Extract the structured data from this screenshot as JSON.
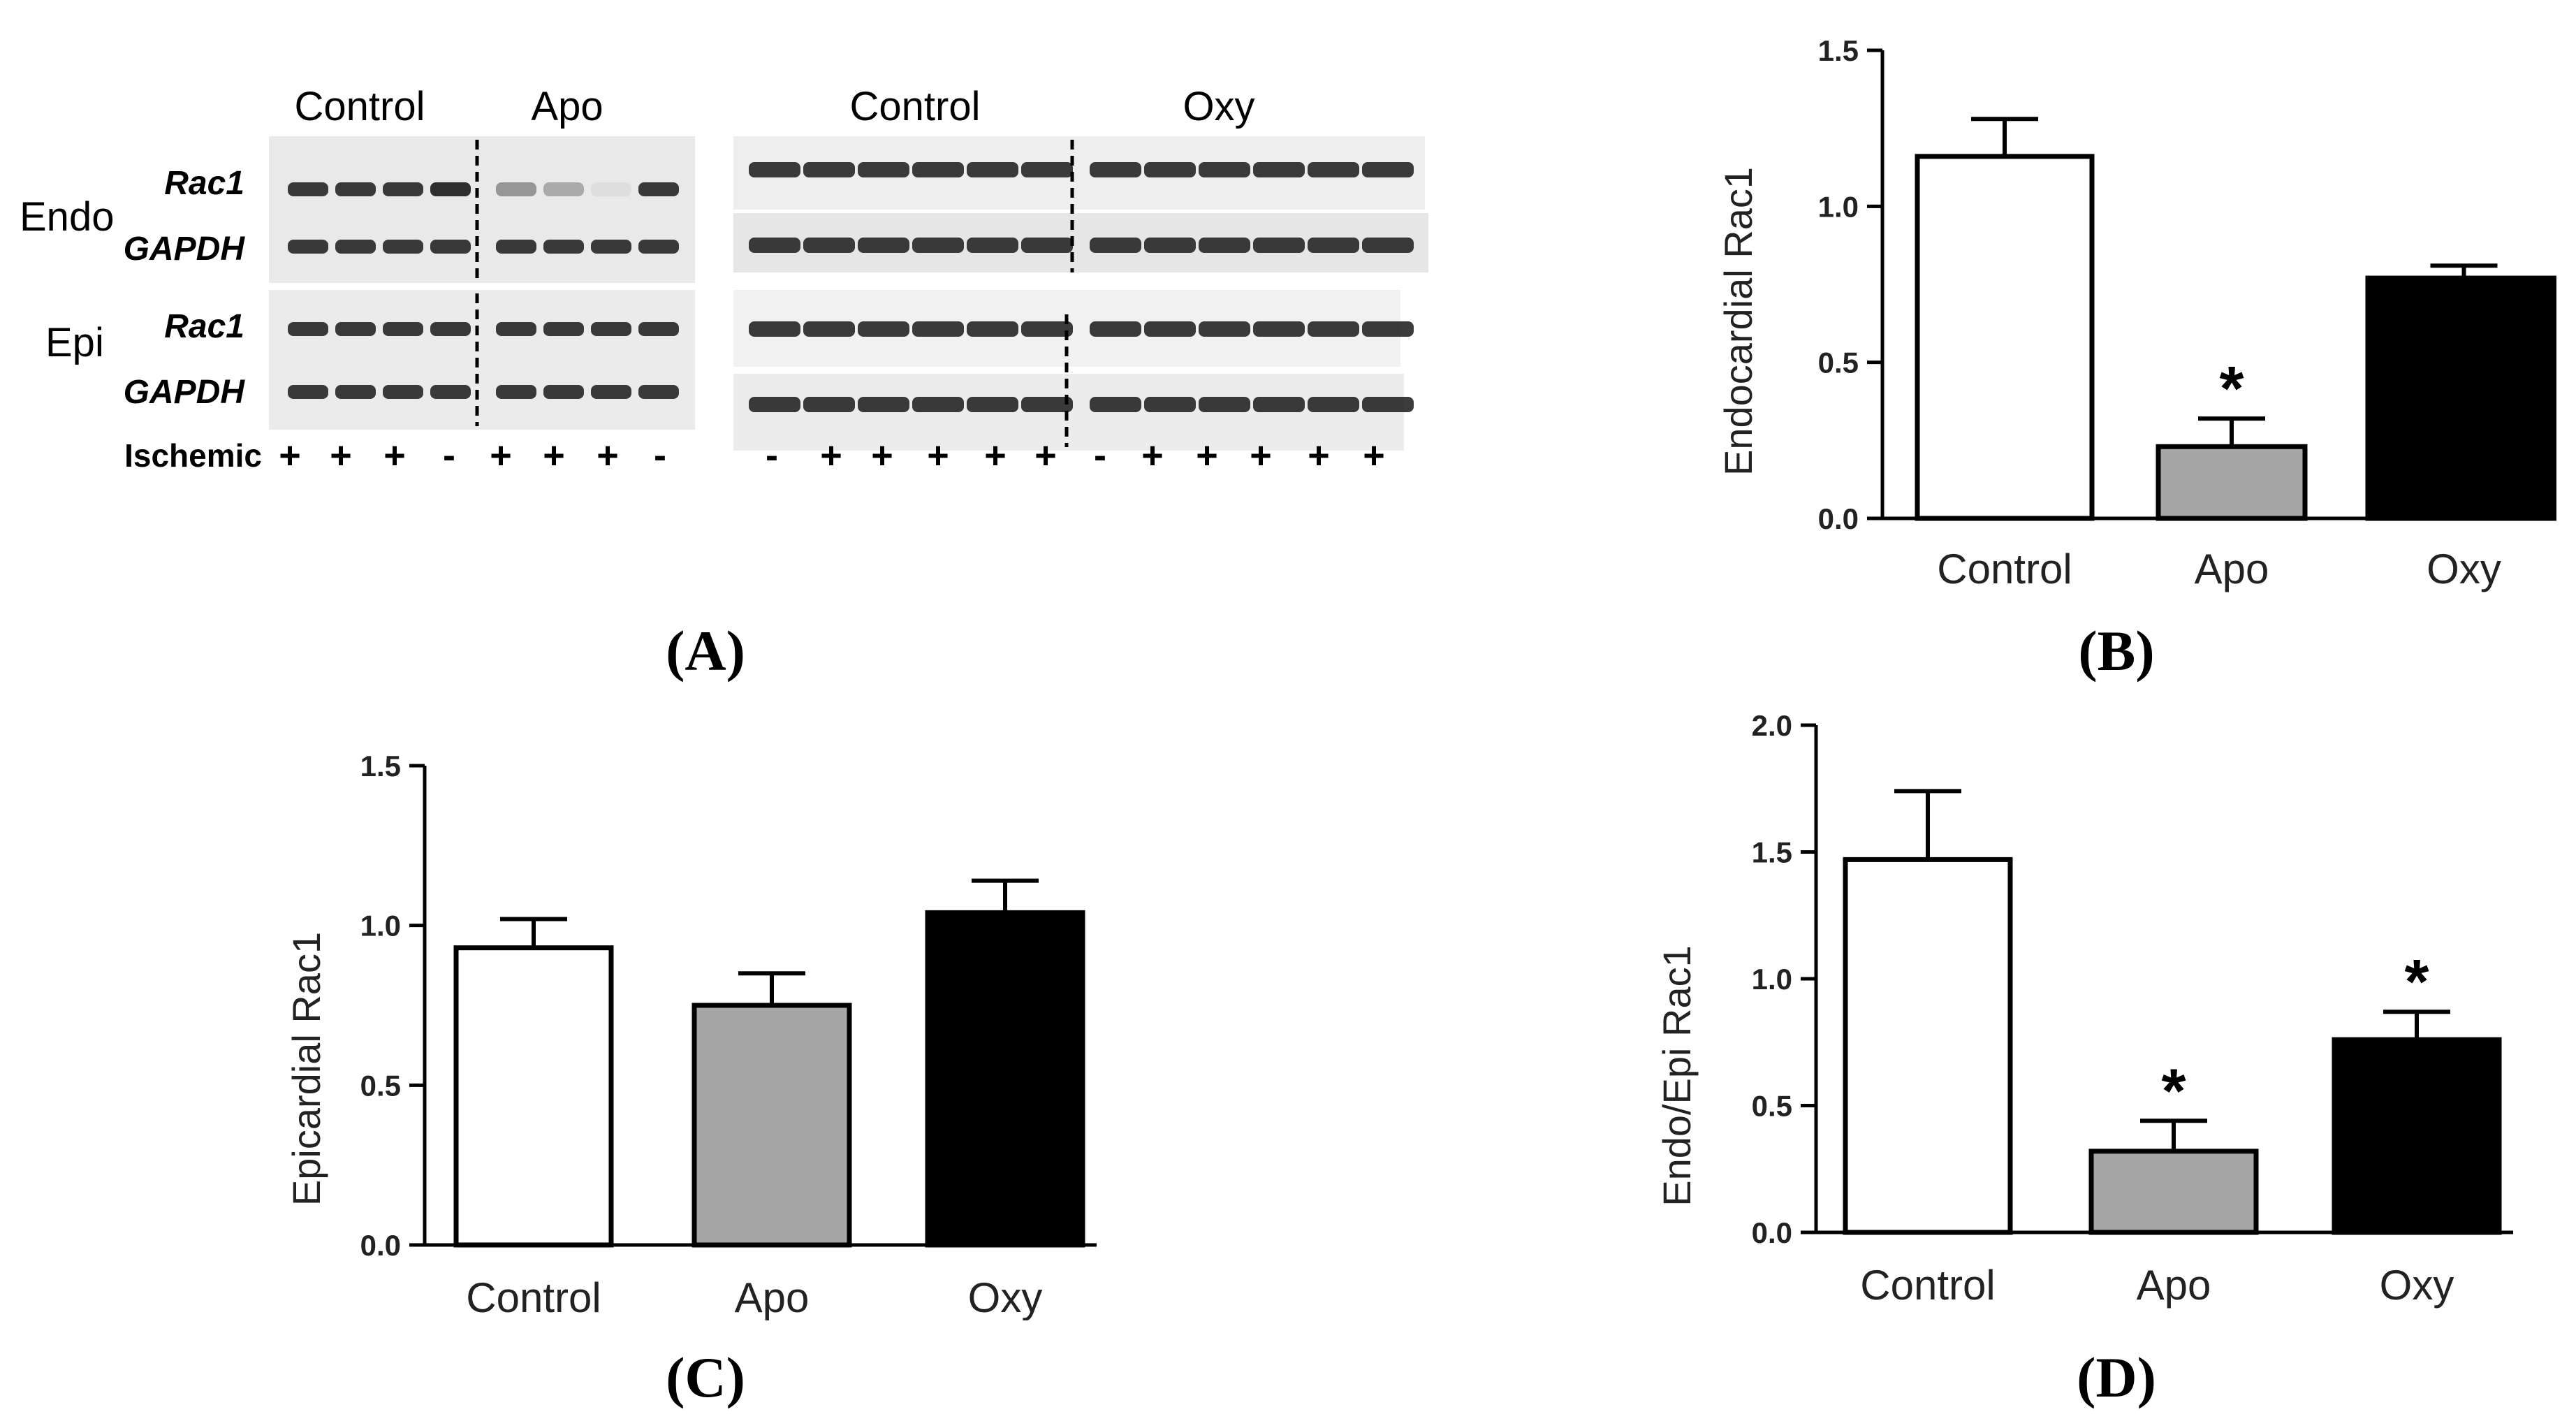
{
  "blot": {
    "left_conditions": [
      "Control",
      "Apo"
    ],
    "right_conditions": [
      "Control",
      "Oxy"
    ],
    "region_labels": [
      "Endo",
      "Epi"
    ],
    "protein_labels": [
      "Rac1",
      "GAPDH"
    ],
    "ischemic_label": "Ischemic",
    "left_ischemic_marks": [
      "+",
      "+",
      "+",
      "-",
      "+",
      "+",
      "+",
      "-"
    ],
    "right_ischemic_marks": [
      "-",
      "+",
      "+",
      "+",
      "+",
      "+",
      "-",
      "+",
      "+",
      "+",
      "+",
      "+"
    ],
    "left_endo_rac1_intensity": [
      0.85,
      0.85,
      0.85,
      0.9,
      0.4,
      0.3,
      0.05,
      0.85
    ],
    "colors": {
      "band": "#1a1a1a",
      "membrane": "#e9e9e9"
    }
  },
  "panel_labels": {
    "A": "(A)",
    "B": "(B)",
    "C": "(C)",
    "D": "(D)"
  },
  "chart_data": [
    {
      "id": "B",
      "type": "bar",
      "categories": [
        "Control",
        "Apo",
        "Oxy"
      ],
      "values": [
        1.16,
        0.23,
        0.77
      ],
      "errors": [
        0.12,
        0.09,
        0.04
      ],
      "significance": [
        "",
        "*",
        ""
      ],
      "bar_colors": [
        "#ffffff",
        "#a6a6a6",
        "#000000"
      ],
      "title": "",
      "xlabel": "",
      "ylabel": "Endocardial Rac1",
      "ylim": [
        0,
        1.5
      ],
      "yticks": [
        "0.0",
        "0.5",
        "1.0",
        "1.5"
      ]
    },
    {
      "id": "C",
      "type": "bar",
      "categories": [
        "Control",
        "Apo",
        "Oxy"
      ],
      "values": [
        0.93,
        0.75,
        1.04
      ],
      "errors": [
        0.09,
        0.1,
        0.1
      ],
      "significance": [
        "",
        "",
        ""
      ],
      "bar_colors": [
        "#ffffff",
        "#a6a6a6",
        "#000000"
      ],
      "title": "",
      "xlabel": "",
      "ylabel": "Epicardial Rac1",
      "ylim": [
        0,
        1.5
      ],
      "yticks": [
        "0.0",
        "0.5",
        "1.0",
        "1.5"
      ]
    },
    {
      "id": "D",
      "type": "bar",
      "categories": [
        "Control",
        "Apo",
        "Oxy"
      ],
      "values": [
        1.47,
        0.32,
        0.76
      ],
      "errors": [
        0.27,
        0.12,
        0.11
      ],
      "significance": [
        "",
        "*",
        "*"
      ],
      "bar_colors": [
        "#ffffff",
        "#a6a6a6",
        "#000000"
      ],
      "title": "",
      "xlabel": "",
      "ylabel": "Endo/Epi Rac1",
      "ylim": [
        0,
        2.0
      ],
      "yticks": [
        "0.0",
        "0.5",
        "1.0",
        "1.5",
        "2.0"
      ]
    }
  ]
}
